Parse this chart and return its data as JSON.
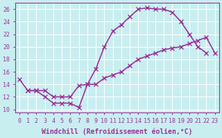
{
  "bg_color": "#c8eef0",
  "line_color": "#993399",
  "grid_color": "#ffffff",
  "xlabel": "Windchill (Refroidissement éolien,°C)",
  "ylabel_ticks": [
    10,
    12,
    14,
    16,
    18,
    20,
    22,
    24,
    26
  ],
  "xlim": [
    -0.5,
    23.5
  ],
  "ylim": [
    9.5,
    27
  ],
  "xticks": [
    0,
    1,
    2,
    3,
    4,
    5,
    6,
    7,
    8,
    9,
    10,
    11,
    12,
    13,
    14,
    15,
    16,
    17,
    18,
    19,
    20,
    21,
    22,
    23
  ],
  "line1_x": [
    1,
    2,
    3,
    4,
    5,
    6,
    7,
    8,
    9,
    10,
    11,
    12,
    13,
    14,
    15,
    16,
    17,
    18,
    19,
    20,
    21,
    22
  ],
  "line1_y": [
    13,
    13,
    12,
    11,
    11,
    11,
    10.3,
    14,
    16.5,
    20,
    22.5,
    23.5,
    24.8,
    26,
    26.2,
    26,
    26,
    25.5,
    24,
    22,
    20,
    19
  ],
  "line2_x": [
    0,
    1,
    2,
    3,
    4,
    5,
    6,
    7,
    8,
    9,
    10,
    11,
    12,
    13,
    14,
    15,
    16,
    17,
    18,
    19,
    20,
    21,
    22,
    23
  ],
  "line2_y": [
    14.8,
    13,
    13,
    13,
    12,
    12,
    12,
    13.8,
    14,
    14,
    15,
    15.5,
    16,
    17,
    18,
    18.5,
    19,
    19.5,
    19.8,
    20,
    20.5,
    21,
    21.5,
    19
  ],
  "marker": "x",
  "marker_size": 4,
  "line_width": 1.2,
  "font_size": 7,
  "tick_font_size": 6
}
